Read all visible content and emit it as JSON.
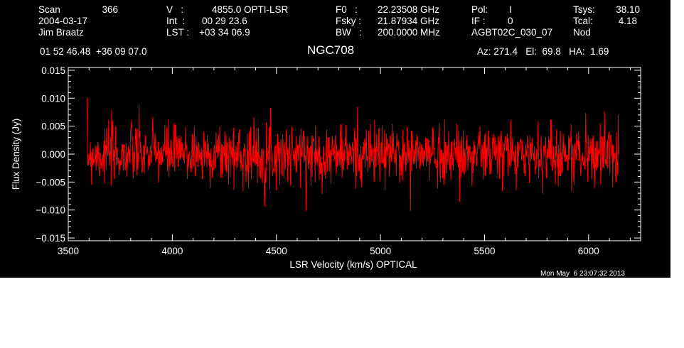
{
  "header": {
    "scan_label": "Scan",
    "scan_value": "366",
    "date": "2004-03-17",
    "observer": "Jim Braatz",
    "v_label": "V   :",
    "v_value": "4855.0 OPTI-LSR",
    "int_label": "Int  :",
    "int_value": "00 29 23.6",
    "lst_label": "LST :",
    "lst_value": "+03 34 06.9",
    "f0_label": "F0   :",
    "f0_value": "22.23508 GHz",
    "fsky_label": "Fsky :",
    "fsky_value": "21.87934 GHz",
    "bw_label": "BW   :",
    "bw_value": "200.0000 MHz",
    "pol_label": "Pol:",
    "pol_value": "I",
    "if_label": "IF :",
    "if_value": "0",
    "project": "AGBT02C_030_07",
    "tsys_label": "Tsys:",
    "tsys_value": "38.10",
    "tcal_label": "Tcal:",
    "tcal_value": "4.18",
    "mode": "Nod",
    "coords": "01 52 46.48  +36 09 07.0",
    "az_el_ha": "Az: 271.4   El:  69.8   HA:  1.69"
  },
  "timestamp": "Mon May  6 23:07:32 2013",
  "colors": {
    "background": "#000000",
    "axes": "#ffffff",
    "trace": "#ff0000"
  },
  "chart_data": {
    "type": "line",
    "title": "NGC708",
    "xlabel": "LSR Velocity (km/s) OPTICAL",
    "ylabel": "Flux Density (Jy)",
    "xlim": [
      3500,
      6250
    ],
    "ylim": [
      -0.0155,
      0.0155
    ],
    "x_ticks": [
      3500,
      4000,
      4500,
      5000,
      5500,
      6000
    ],
    "x_tick_labels": [
      "3500",
      "4000",
      "4500",
      "5000",
      "5500",
      "6000"
    ],
    "y_ticks": [
      -0.015,
      -0.01,
      -0.005,
      0.0,
      0.005,
      0.01,
      0.015
    ],
    "y_tick_labels": [
      "−0.015",
      "−0.010",
      "−0.005",
      "0.000",
      "0.005",
      "0.010",
      "0.015"
    ],
    "grid": false,
    "series": [
      {
        "x_start": 3590,
        "x_end": 6145,
        "x_step": 2,
        "y_mean": 0.0,
        "y_rms": 0.0027,
        "y_min_observed": -0.0102,
        "y_max_observed": 0.0101
      }
    ]
  }
}
